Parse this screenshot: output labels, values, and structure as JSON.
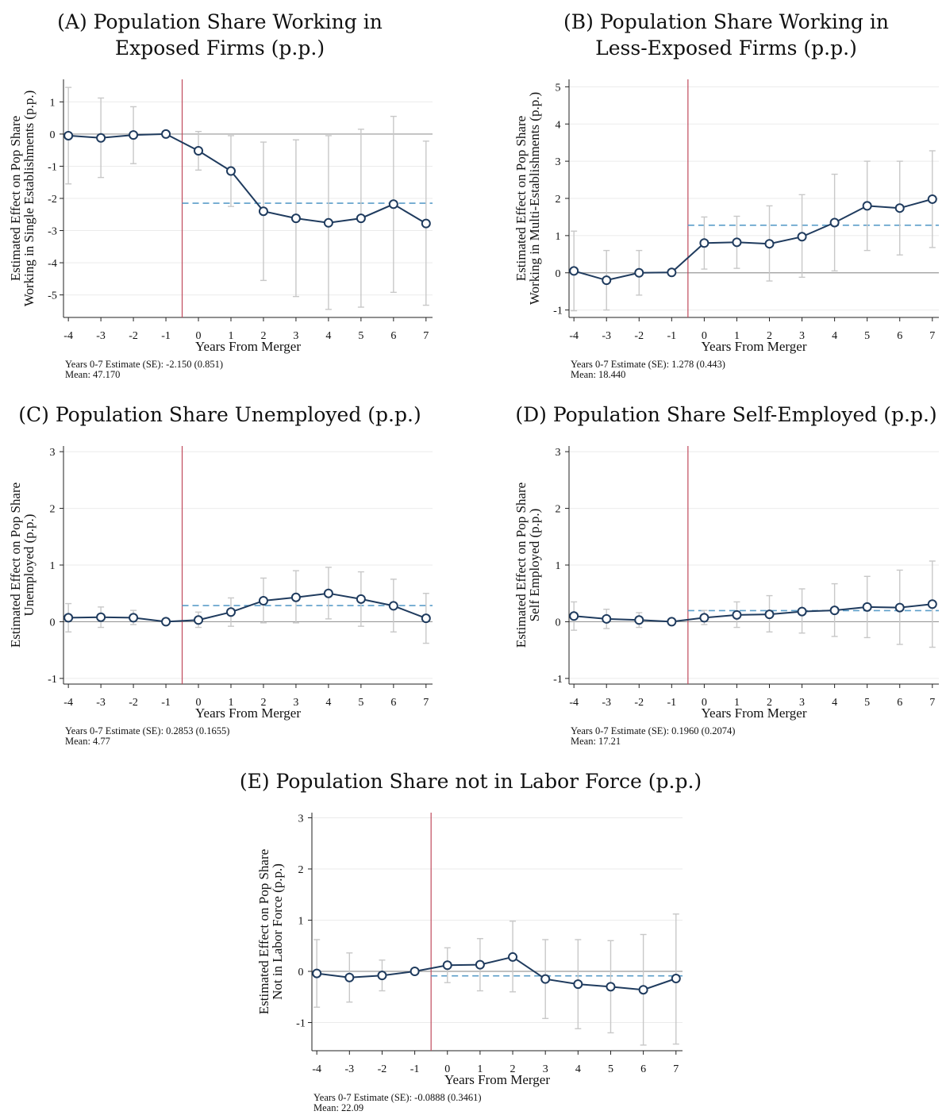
{
  "chart_data": [
    {
      "id": "A",
      "type": "line",
      "title_lines": [
        "(A) Population Share Working in",
        "Exposed Firms (p.p.)"
      ],
      "xlabel": "Years From Merger",
      "ylabel_lines": [
        "Estimated Effect on Pop Share",
        "Working in Single Establishments (p.p.)"
      ],
      "x": [
        -4,
        -3,
        -2,
        -1,
        0,
        1,
        2,
        3,
        4,
        5,
        6,
        7
      ],
      "y": [
        -0.05,
        -0.12,
        -0.03,
        0.0,
        -0.52,
        -1.15,
        -2.4,
        -2.62,
        -2.76,
        -2.62,
        -2.18,
        -2.78
      ],
      "ci_low": [
        -1.55,
        -1.35,
        -0.92,
        0.0,
        -1.12,
        -2.25,
        -4.55,
        -5.05,
        -5.45,
        -5.38,
        -4.92,
        -5.32
      ],
      "ci_high": [
        1.45,
        1.12,
        0.85,
        0.0,
        0.08,
        -0.05,
        -0.25,
        -0.18,
        -0.05,
        0.15,
        0.55,
        -0.22
      ],
      "yticks": [
        -5,
        -4,
        -3,
        -2,
        -1,
        0,
        1
      ],
      "xticks": [
        -4,
        -3,
        -2,
        -1,
        0,
        1,
        2,
        3,
        4,
        5,
        6,
        7
      ],
      "ylim": [
        -5.7,
        1.7
      ],
      "xlim": [
        -4.15,
        7.2
      ],
      "event_x": -0.5,
      "avg_estimate": -2.15,
      "note_lines": [
        "Years 0-7 Estimate (SE): -2.150 (0.851)",
        "Mean: 47.170"
      ]
    },
    {
      "id": "B",
      "type": "line",
      "title_lines": [
        "(B) Population Share Working in",
        "Less-Exposed Firms (p.p.)"
      ],
      "xlabel": "Years From Merger",
      "ylabel_lines": [
        "Estimated Effect on Pop Share",
        "Working in Multi-Establishments (p.p.)"
      ],
      "x": [
        -4,
        -3,
        -2,
        -1,
        0,
        1,
        2,
        3,
        4,
        5,
        6,
        7
      ],
      "y": [
        0.05,
        -0.2,
        0.0,
        0.01,
        0.8,
        0.82,
        0.78,
        0.97,
        1.35,
        1.8,
        1.74,
        1.98
      ],
      "ci_low": [
        -1.02,
        -1.0,
        -0.6,
        0.01,
        0.1,
        0.12,
        -0.22,
        -0.12,
        0.05,
        0.6,
        0.48,
        0.68
      ],
      "ci_high": [
        1.12,
        0.6,
        0.6,
        0.01,
        1.5,
        1.52,
        1.8,
        2.1,
        2.65,
        3.0,
        3.0,
        3.28
      ],
      "yticks": [
        -1,
        0,
        1,
        2,
        3,
        4,
        5
      ],
      "xticks": [
        -4,
        -3,
        -2,
        -1,
        0,
        1,
        2,
        3,
        4,
        5,
        6,
        7
      ],
      "ylim": [
        -1.2,
        5.2
      ],
      "xlim": [
        -4.15,
        7.2
      ],
      "event_x": -0.5,
      "avg_estimate": 1.278,
      "note_lines": [
        "Years 0-7 Estimate (SE): 1.278 (0.443)",
        "Mean: 18.440"
      ]
    },
    {
      "id": "C",
      "type": "line",
      "title_lines": [
        "(C) Population Share Unemployed (p.p.)"
      ],
      "xlabel": "Years From Merger",
      "ylabel_lines": [
        "Estimated Effect on Pop Share",
        "Unemployed (p.p.)"
      ],
      "x": [
        -4,
        -3,
        -2,
        -1,
        0,
        1,
        2,
        3,
        4,
        5,
        6,
        7
      ],
      "y": [
        0.07,
        0.08,
        0.07,
        0.0,
        0.03,
        0.17,
        0.37,
        0.43,
        0.5,
        0.4,
        0.28,
        0.06
      ],
      "ci_low": [
        -0.18,
        -0.1,
        -0.05,
        0.0,
        -0.1,
        -0.08,
        -0.02,
        -0.02,
        0.05,
        -0.08,
        -0.18,
        -0.38
      ],
      "ci_high": [
        0.32,
        0.26,
        0.2,
        0.0,
        0.17,
        0.42,
        0.77,
        0.9,
        0.96,
        0.88,
        0.75,
        0.5
      ],
      "yticks": [
        -1,
        0,
        1,
        2,
        3
      ],
      "xticks": [
        -4,
        -3,
        -2,
        -1,
        0,
        1,
        2,
        3,
        4,
        5,
        6,
        7
      ],
      "ylim": [
        -1.1,
        3.1
      ],
      "xlim": [
        -4.15,
        7.2
      ],
      "event_x": -0.5,
      "avg_estimate": 0.2853,
      "note_lines": [
        "Years 0-7 Estimate (SE): 0.2853 (0.1655)",
        "Mean: 4.77"
      ]
    },
    {
      "id": "D",
      "type": "line",
      "title_lines": [
        "(D) Population Share Self-Employed (p.p.)"
      ],
      "xlabel": "Years From Merger",
      "ylabel_lines": [
        "Estimated Effect on Pop Share",
        "Self Employed (p.p.)"
      ],
      "x": [
        -4,
        -3,
        -2,
        -1,
        0,
        1,
        2,
        3,
        4,
        5,
        6,
        7
      ],
      "y": [
        0.1,
        0.05,
        0.03,
        0.0,
        0.07,
        0.12,
        0.13,
        0.18,
        0.2,
        0.26,
        0.25,
        0.31
      ],
      "ci_low": [
        -0.15,
        -0.12,
        -0.1,
        0.0,
        -0.05,
        -0.1,
        -0.18,
        -0.2,
        -0.26,
        -0.28,
        -0.4,
        -0.45
      ],
      "ci_high": [
        0.35,
        0.22,
        0.16,
        0.0,
        0.2,
        0.35,
        0.46,
        0.58,
        0.67,
        0.8,
        0.91,
        1.07
      ],
      "yticks": [
        -1,
        0,
        1,
        2,
        3
      ],
      "xticks": [
        -4,
        -3,
        -2,
        -1,
        0,
        1,
        2,
        3,
        4,
        5,
        6,
        7
      ],
      "ylim": [
        -1.1,
        3.1
      ],
      "xlim": [
        -4.15,
        7.2
      ],
      "event_x": -0.5,
      "avg_estimate": 0.196,
      "note_lines": [
        "Years 0-7 Estimate (SE): 0.1960 (0.2074)",
        "Mean: 17.21"
      ]
    },
    {
      "id": "E",
      "type": "line",
      "title_lines": [
        "(E) Population Share not in Labor Force (p.p.)"
      ],
      "xlabel": "Years From Merger",
      "ylabel_lines": [
        "Estimated Effect on Pop Share",
        "Not in Labor Force (p.p.)"
      ],
      "x": [
        -4,
        -3,
        -2,
        -1,
        0,
        1,
        2,
        3,
        4,
        5,
        6,
        7
      ],
      "y": [
        -0.04,
        -0.12,
        -0.08,
        0.0,
        0.12,
        0.13,
        0.28,
        -0.15,
        -0.25,
        -0.3,
        -0.36,
        -0.14
      ],
      "ci_low": [
        -0.7,
        -0.6,
        -0.38,
        0.0,
        -0.22,
        -0.38,
        -0.4,
        -0.92,
        -1.12,
        -1.2,
        -1.44,
        -1.42
      ],
      "ci_high": [
        0.62,
        0.36,
        0.22,
        0.0,
        0.46,
        0.64,
        0.98,
        0.62,
        0.62,
        0.6,
        0.72,
        1.12
      ],
      "yticks": [
        -1,
        0,
        1,
        2,
        3
      ],
      "xticks": [
        -4,
        -3,
        -2,
        -1,
        0,
        1,
        2,
        3,
        4,
        5,
        6,
        7
      ],
      "ylim": [
        -1.55,
        3.1
      ],
      "xlim": [
        -4.15,
        7.2
      ],
      "event_x": -0.5,
      "avg_estimate": -0.0888,
      "note_lines": [
        "Years 0-7 Estimate (SE): -0.0888 (0.3461)",
        "Mean: 22.09"
      ]
    }
  ]
}
